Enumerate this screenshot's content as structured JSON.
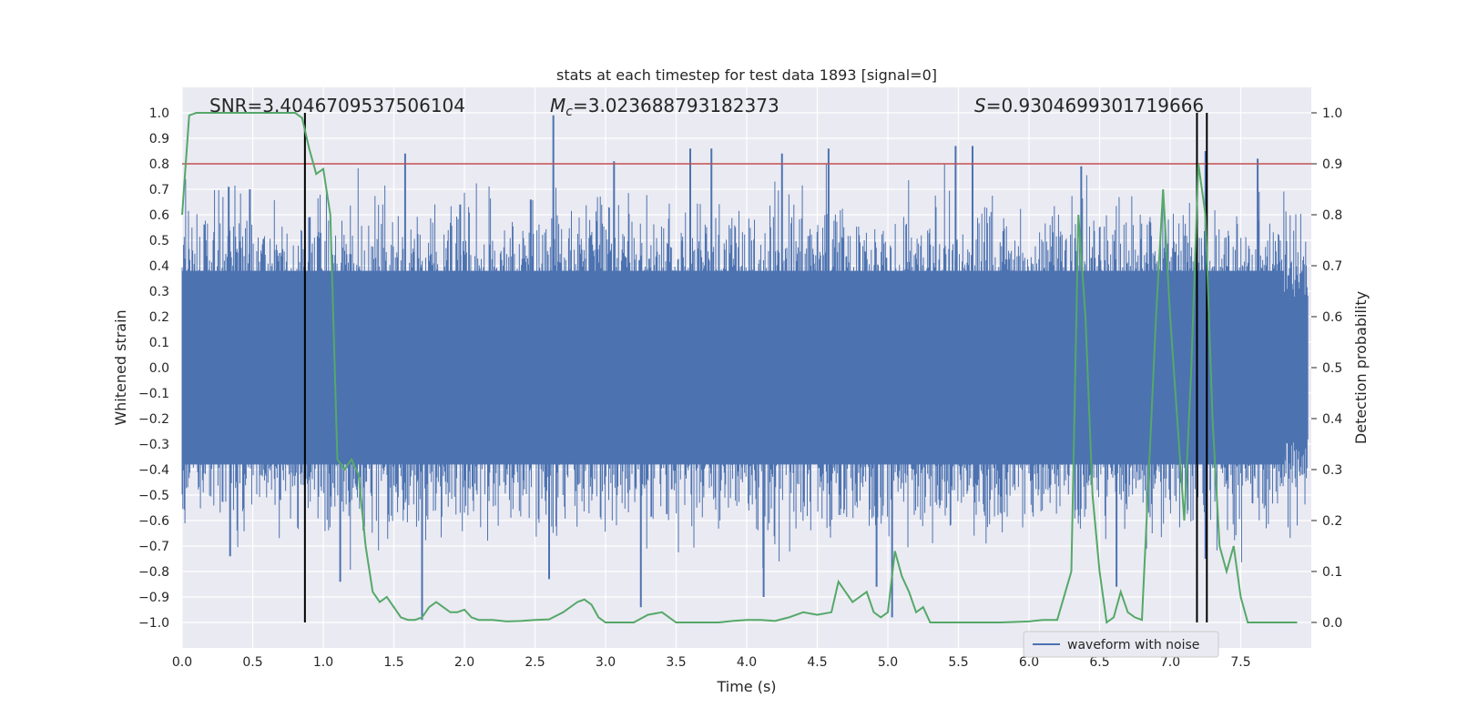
{
  "chart_data": {
    "type": "line",
    "title": "stats at each timestep for test data 1893 [signal=0]",
    "xlabel": "Time (s)",
    "ylabel": "Whitened strain",
    "y2label": "Detection probability",
    "xlim": [
      0.0,
      8.0
    ],
    "ylim": [
      -1.1,
      1.1
    ],
    "y2lim": [
      -0.05,
      1.05
    ],
    "x_ticks": [
      "0.0",
      "0.5",
      "1.0",
      "1.5",
      "2.0",
      "2.5",
      "3.0",
      "3.5",
      "4.0",
      "4.5",
      "5.0",
      "5.5",
      "6.0",
      "6.5",
      "7.0",
      "7.5"
    ],
    "y_ticks": [
      "1.0",
      "0.9",
      "0.8",
      "0.7",
      "0.6",
      "0.5",
      "0.4",
      "0.3",
      "0.2",
      "0.1",
      "0.0",
      "−0.1",
      "−0.2",
      "−0.3",
      "−0.4",
      "−0.5",
      "−0.6",
      "−0.7",
      "−0.8",
      "−0.9",
      "−1.0"
    ],
    "y2_ticks": [
      "1.0",
      "0.9",
      "0.8",
      "0.7",
      "0.6",
      "0.5",
      "0.4",
      "0.3",
      "0.2",
      "0.1",
      "0.0"
    ],
    "annotations": {
      "snr": "SNR=3.4046709537506104",
      "mc_prefix": "M",
      "mc_sub": "c",
      "mc_value": "=3.023688793182373",
      "s_prefix": "S",
      "s_value": "=0.9304699301719666"
    },
    "threshold": {
      "value": 0.9,
      "axis": "right",
      "color": "#c44e52"
    },
    "vertical_lines_x": [
      0.87,
      7.19,
      7.26
    ],
    "waveform": {
      "name": "waveform with noise",
      "color": "#4c72b0",
      "description_values": "dense noise time series between approximately -0.98 and 0.99",
      "envelope_typical": 0.5,
      "peaks": [
        {
          "x": 0.33,
          "y": 0.71
        },
        {
          "x": 0.48,
          "y": 0.7
        },
        {
          "x": 0.9,
          "y": 0.59
        },
        {
          "x": 1.58,
          "y": 0.84
        },
        {
          "x": 1.97,
          "y": 0.64
        },
        {
          "x": 2.47,
          "y": 0.66
        },
        {
          "x": 2.63,
          "y": 0.99
        },
        {
          "x": 3.06,
          "y": 0.81
        },
        {
          "x": 3.6,
          "y": 0.86
        },
        {
          "x": 3.75,
          "y": 0.86
        },
        {
          "x": 4.25,
          "y": 0.84
        },
        {
          "x": 4.58,
          "y": 0.86
        },
        {
          "x": 5.48,
          "y": 0.87
        },
        {
          "x": 5.6,
          "y": 0.87
        },
        {
          "x": 6.37,
          "y": 0.79
        },
        {
          "x": 7.25,
          "y": 0.85
        },
        {
          "x": 7.62,
          "y": 0.82
        },
        {
          "x": 0.34,
          "y": -0.74
        },
        {
          "x": 1.12,
          "y": -0.84
        },
        {
          "x": 1.7,
          "y": -0.99
        },
        {
          "x": 2.6,
          "y": -0.83
        },
        {
          "x": 3.25,
          "y": -0.94
        },
        {
          "x": 4.12,
          "y": -0.9
        },
        {
          "x": 4.92,
          "y": -0.86
        },
        {
          "x": 5.03,
          "y": -0.98
        },
        {
          "x": 6.62,
          "y": -0.86
        },
        {
          "x": 7.25,
          "y": -0.75
        }
      ]
    },
    "probability": {
      "color": "#55a868",
      "x": [
        0.0,
        0.05,
        0.1,
        0.15,
        0.2,
        0.3,
        0.4,
        0.5,
        0.6,
        0.7,
        0.8,
        0.85,
        0.9,
        0.95,
        1.0,
        1.05,
        1.1,
        1.15,
        1.2,
        1.25,
        1.3,
        1.35,
        1.4,
        1.45,
        1.5,
        1.55,
        1.6,
        1.65,
        1.7,
        1.75,
        1.8,
        1.85,
        1.9,
        1.95,
        2.0,
        2.05,
        2.1,
        2.15,
        2.2,
        2.3,
        2.4,
        2.5,
        2.6,
        2.7,
        2.8,
        2.85,
        2.9,
        2.95,
        3.0,
        3.05,
        3.1,
        3.2,
        3.3,
        3.4,
        3.45,
        3.5,
        3.55,
        3.6,
        3.7,
        3.8,
        3.9,
        4.0,
        4.1,
        4.2,
        4.3,
        4.4,
        4.5,
        4.6,
        4.65,
        4.7,
        4.75,
        4.8,
        4.85,
        4.9,
        4.95,
        5.0,
        5.05,
        5.1,
        5.15,
        5.2,
        5.25,
        5.3,
        5.4,
        5.5,
        5.6,
        5.8,
        6.0,
        6.1,
        6.2,
        6.3,
        6.35,
        6.4,
        6.45,
        6.5,
        6.55,
        6.6,
        6.65,
        6.7,
        6.75,
        6.8,
        6.85,
        6.9,
        6.95,
        7.0,
        7.05,
        7.1,
        7.15,
        7.2,
        7.25,
        7.3,
        7.35,
        7.4,
        7.45,
        7.5,
        7.55,
        7.6,
        7.65,
        7.7,
        7.8,
        7.9
      ],
      "y": [
        0.8,
        0.995,
        1.0,
        1.0,
        1.0,
        1.0,
        1.0,
        1.0,
        1.0,
        1.0,
        1.0,
        0.99,
        0.93,
        0.88,
        0.89,
        0.8,
        0.32,
        0.3,
        0.32,
        0.29,
        0.15,
        0.06,
        0.04,
        0.05,
        0.03,
        0.01,
        0.005,
        0.005,
        0.01,
        0.03,
        0.04,
        0.03,
        0.02,
        0.02,
        0.025,
        0.01,
        0.005,
        0.005,
        0.005,
        0.002,
        0.003,
        0.005,
        0.006,
        0.02,
        0.04,
        0.045,
        0.035,
        0.01,
        0.0,
        0.0,
        0.0,
        0.0,
        0.015,
        0.02,
        0.01,
        0.0,
        0.0,
        0.0,
        0.0,
        0.0,
        0.003,
        0.005,
        0.005,
        0.003,
        0.01,
        0.02,
        0.015,
        0.02,
        0.08,
        0.06,
        0.04,
        0.05,
        0.06,
        0.02,
        0.01,
        0.02,
        0.14,
        0.09,
        0.06,
        0.02,
        0.03,
        0.0,
        0.0,
        0.0,
        0.0,
        0.0,
        0.002,
        0.005,
        0.005,
        0.1,
        0.8,
        0.6,
        0.25,
        0.1,
        0.0,
        0.01,
        0.06,
        0.02,
        0.01,
        0.005,
        0.3,
        0.6,
        0.85,
        0.6,
        0.4,
        0.2,
        0.5,
        0.9,
        0.8,
        0.4,
        0.15,
        0.1,
        0.15,
        0.05,
        0.0,
        0.0,
        0.0,
        0.0,
        0.0,
        0.0
      ],
      "comment": ""
    },
    "legend": {
      "position": "bottom-right",
      "entries": [
        "waveform with noise"
      ]
    },
    "grid": true
  }
}
